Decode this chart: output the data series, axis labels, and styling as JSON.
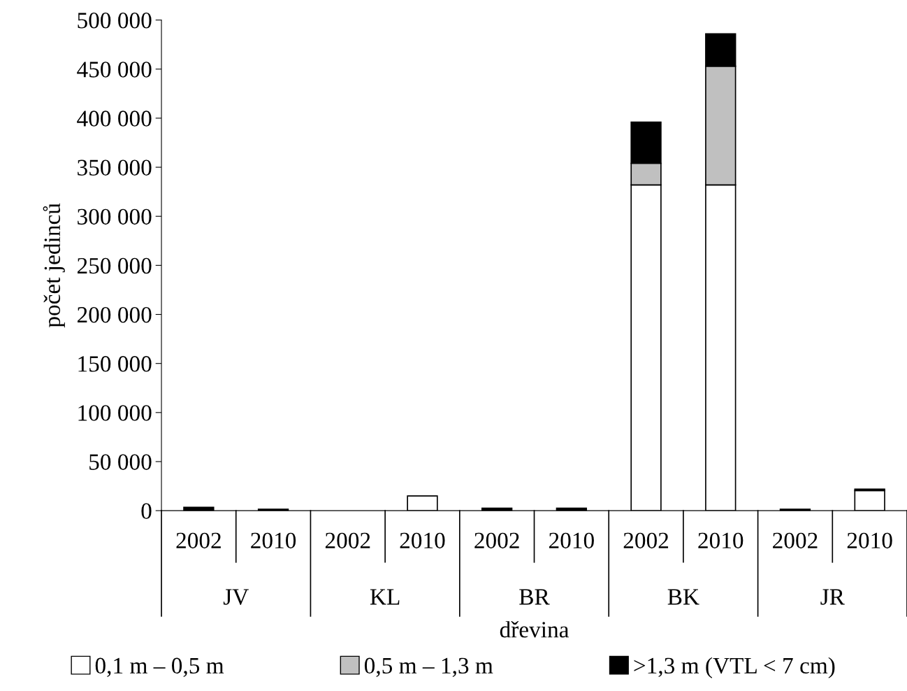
{
  "chart_data": {
    "type": "bar",
    "stacked": true,
    "xlabel": "dřevina",
    "ylabel": "počet jedinců",
    "categories": [
      "2002",
      "2010",
      "2002",
      "2010",
      "2002",
      "2010",
      "2002",
      "2010",
      "2002",
      "2010"
    ],
    "annotations": [
      "JV",
      "KL",
      "BR",
      "BK",
      "JR"
    ],
    "series": [
      {
        "name": "0,1 m – 0,5 m",
        "color": "#ffffff",
        "values": [
          null,
          null,
          null,
          15000,
          null,
          null,
          332000,
          332000,
          null,
          20500
        ]
      },
      {
        "name": "0,5 m – 1,3 m",
        "color": "#c0c0c0",
        "values": [
          null,
          null,
          null,
          null,
          null,
          null,
          22000,
          121000,
          null,
          null
        ]
      },
      {
        "name": ">1,3 m (VTL < 7 cm)",
        "color": "#000000",
        "values": [
          3500,
          1500,
          null,
          null,
          2500,
          2500,
          42000,
          33000,
          1500,
          1500
        ]
      }
    ],
    "ylim": [
      0,
      500000
    ],
    "yticks": [
      {
        "value": 0,
        "label": "0"
      },
      {
        "value": 50000,
        "label": "50 000"
      },
      {
        "value": 100000,
        "label": "100 000"
      },
      {
        "value": 150000,
        "label": "150 000"
      },
      {
        "value": 200000,
        "label": "200 000"
      },
      {
        "value": 250000,
        "label": "250 000"
      },
      {
        "value": 300000,
        "label": "300 000"
      },
      {
        "value": 350000,
        "label": "350 000"
      },
      {
        "value": 400000,
        "label": "400 000"
      },
      {
        "value": 450000,
        "label": "450 000"
      },
      {
        "value": 500000,
        "label": "500 000"
      }
    ],
    "grid": false,
    "legend": "bottom"
  }
}
